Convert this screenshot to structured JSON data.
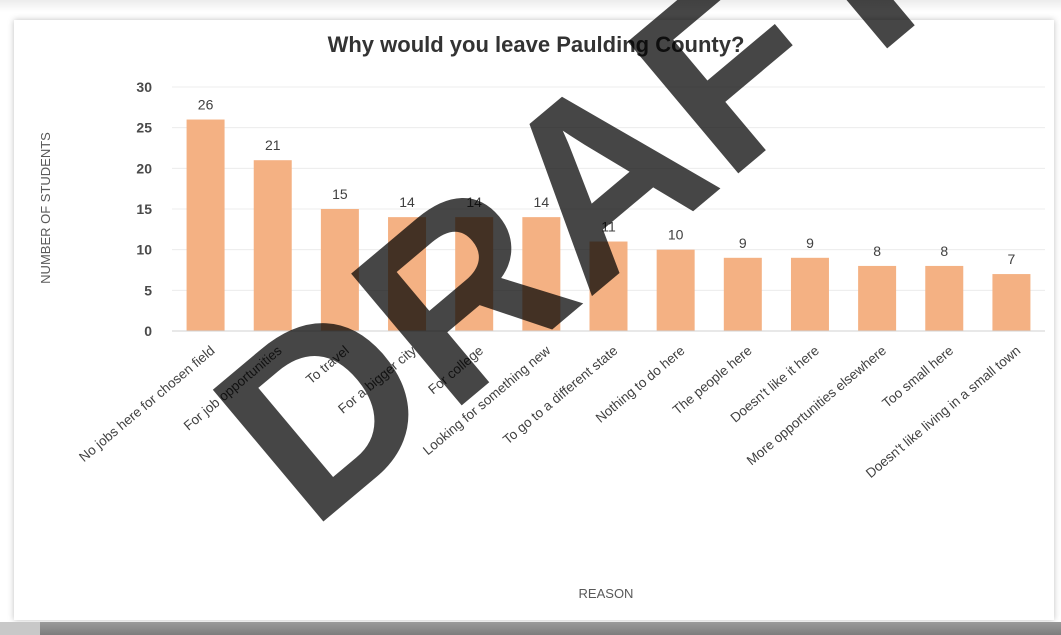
{
  "chart_data": {
    "type": "bar",
    "title": "Why would you leave Paulding County?",
    "xlabel": "REASON",
    "ylabel": "NUMBER OF STUDENTS",
    "ylim": [
      0,
      30
    ],
    "yticks": [
      0,
      5,
      10,
      15,
      20,
      25,
      30
    ],
    "grid": true,
    "legend": "none",
    "bar_color": "#f4b183",
    "categories": [
      "No jobs here for chosen field",
      "For job opportunities",
      "To travel",
      "For a bigger city",
      "For college",
      "Looking for something new",
      "To go to a different state",
      "Nothing to do here",
      "The people here",
      "Doesn't like it here",
      "More opportunities elsewhere",
      "Too small here",
      "Doesn't like living in a small town"
    ],
    "values": [
      26,
      21,
      15,
      14,
      14,
      14,
      11,
      10,
      9,
      9,
      8,
      8,
      7
    ]
  },
  "watermark": {
    "text": "DRAFT",
    "color": "#000000"
  }
}
